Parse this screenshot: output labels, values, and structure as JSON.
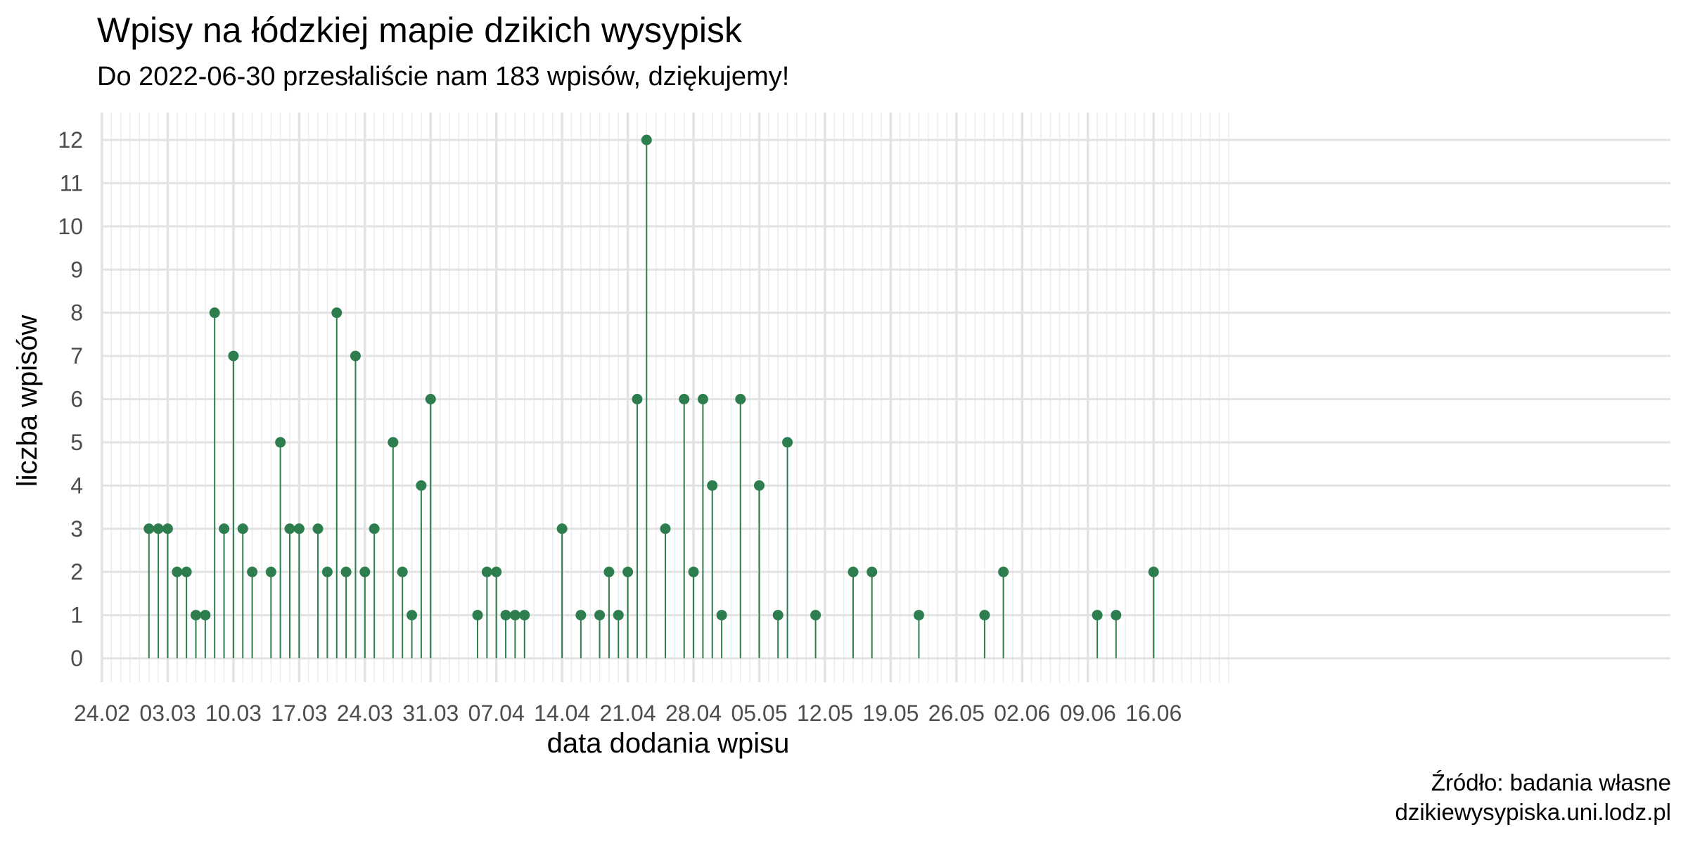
{
  "chart_data": {
    "type": "lollipop",
    "title": "Wpisy na łódzkiej mapie dzikich wysypisk",
    "subtitle": "Do 2022-06-30 przesłaliście nam 183 wpisów, dziękujemy!",
    "xlabel": "data dodania wpisu",
    "ylabel": "liczba wpisów",
    "caption_lines": [
      "Źródło: badania własne",
      "dzikiewysypiska.uni.lodz.pl"
    ],
    "x_range": [
      "2022-02-24",
      "2022-06-23"
    ],
    "ylim": [
      0,
      12
    ],
    "y_ticks": [
      0,
      1,
      2,
      3,
      4,
      5,
      6,
      7,
      8,
      9,
      10,
      11,
      12
    ],
    "x_ticks": [
      {
        "date": "2022-02-24",
        "label": "24.02"
      },
      {
        "date": "2022-03-03",
        "label": "03.03"
      },
      {
        "date": "2022-03-10",
        "label": "10.03"
      },
      {
        "date": "2022-03-17",
        "label": "17.03"
      },
      {
        "date": "2022-03-24",
        "label": "24.03"
      },
      {
        "date": "2022-03-31",
        "label": "31.03"
      },
      {
        "date": "2022-04-07",
        "label": "07.04"
      },
      {
        "date": "2022-04-14",
        "label": "14.04"
      },
      {
        "date": "2022-04-21",
        "label": "21.04"
      },
      {
        "date": "2022-04-28",
        "label": "28.04"
      },
      {
        "date": "2022-05-05",
        "label": "05.05"
      },
      {
        "date": "2022-05-12",
        "label": "12.05"
      },
      {
        "date": "2022-05-19",
        "label": "19.05"
      },
      {
        "date": "2022-05-26",
        "label": "26.05"
      },
      {
        "date": "2022-06-02",
        "label": "02.06"
      },
      {
        "date": "2022-06-09",
        "label": "09.06"
      },
      {
        "date": "2022-06-16",
        "label": "16.06"
      }
    ],
    "grid": true,
    "colors": {
      "mark": "#2e7d4f",
      "grid": "#ebebeb",
      "grid_major": "#e3e3e3"
    },
    "series": [
      {
        "x": [
          "2022-03-01",
          "2022-03-02",
          "2022-03-03",
          "2022-03-04",
          "2022-03-05",
          "2022-03-06",
          "2022-03-07",
          "2022-03-08",
          "2022-03-09",
          "2022-03-10",
          "2022-03-11",
          "2022-03-12",
          "2022-03-14",
          "2022-03-15",
          "2022-03-16",
          "2022-03-17",
          "2022-03-19",
          "2022-03-20",
          "2022-03-21",
          "2022-03-22",
          "2022-03-23",
          "2022-03-24",
          "2022-03-25",
          "2022-03-27",
          "2022-03-28",
          "2022-03-29",
          "2022-03-30",
          "2022-03-31",
          "2022-04-05",
          "2022-04-06",
          "2022-04-07",
          "2022-04-08",
          "2022-04-09",
          "2022-04-10",
          "2022-04-14",
          "2022-04-16",
          "2022-04-18",
          "2022-04-19",
          "2022-04-20",
          "2022-04-21",
          "2022-04-22",
          "2022-04-23",
          "2022-04-25",
          "2022-04-27",
          "2022-04-28",
          "2022-04-29",
          "2022-04-30",
          "2022-05-01",
          "2022-05-03",
          "2022-05-05",
          "2022-05-07",
          "2022-05-08",
          "2022-05-11",
          "2022-05-15",
          "2022-05-17",
          "2022-05-22",
          "2022-05-29",
          "2022-05-31",
          "2022-06-10",
          "2022-06-12",
          "2022-06-16"
        ],
        "y": [
          3,
          3,
          3,
          2,
          2,
          1,
          1,
          8,
          3,
          7,
          3,
          2,
          2,
          5,
          3,
          3,
          3,
          2,
          8,
          2,
          7,
          2,
          3,
          5,
          2,
          1,
          4,
          6,
          1,
          2,
          2,
          1,
          1,
          1,
          3,
          1,
          1,
          2,
          1,
          2,
          6,
          12,
          3,
          6,
          2,
          6,
          4,
          1,
          6,
          4,
          1,
          5,
          1,
          2,
          2,
          1,
          1,
          2,
          1,
          1,
          2
        ]
      }
    ]
  }
}
